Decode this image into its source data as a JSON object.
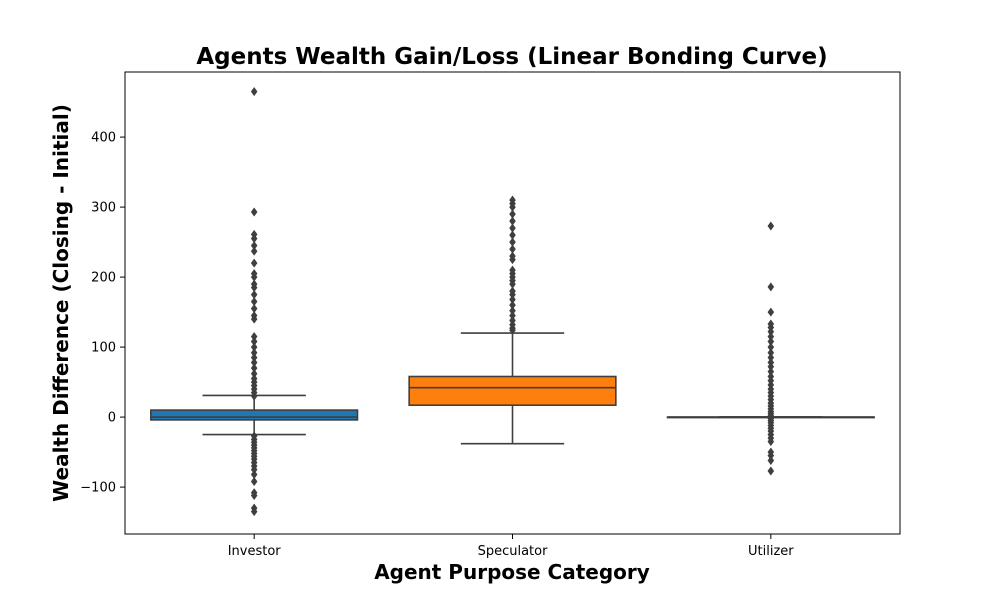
{
  "chart_data": {
    "type": "box",
    "title": "Agents Wealth Gain/Loss (Linear Bonding Curve)",
    "xlabel": "Agent Purpose Category",
    "ylabel": "Wealth Difference (Closing - Initial)",
    "categories": [
      "Investor",
      "Speculator",
      "Utilizer"
    ],
    "ylim": [
      -167,
      493
    ],
    "yticks": [
      -100,
      0,
      100,
      200,
      300,
      400
    ],
    "grid": false,
    "boxes": [
      {
        "category": "Investor",
        "color": "#1f77b4",
        "q1": -4,
        "median": 0,
        "q3": 10,
        "whisker_low": -25,
        "whisker_high": 31,
        "outliers": [
          465,
          293,
          261,
          255,
          245,
          237,
          220,
          205,
          200,
          190,
          185,
          175,
          165,
          155,
          145,
          140,
          115,
          108,
          100,
          92,
          85,
          78,
          70,
          62,
          55,
          50,
          45,
          40,
          35,
          30,
          -27,
          -32,
          -36,
          -40,
          -44,
          -48,
          -52,
          -56,
          -60,
          -65,
          -70,
          -75,
          -82,
          -92,
          -108,
          -112,
          -130,
          -135
        ]
      },
      {
        "category": "Speculator",
        "color": "#ff7f0e",
        "q1": 17,
        "median": 42,
        "q3": 58,
        "whisker_low": -38,
        "whisker_high": 120,
        "outliers": [
          310,
          305,
          300,
          290,
          280,
          270,
          260,
          250,
          240,
          230,
          225,
          210,
          205,
          200,
          195,
          190,
          180,
          175,
          168,
          160,
          152,
          145,
          138,
          132,
          127,
          124
        ]
      },
      {
        "category": "Utilizer",
        "color": "#2ca02c",
        "q1": 0,
        "median": 0,
        "q3": 0,
        "whisker_low": 0,
        "whisker_high": 0,
        "outliers": [
          273,
          186,
          150,
          133,
          128,
          122,
          115,
          108,
          100,
          92,
          85,
          78,
          72,
          65,
          58,
          52,
          46,
          40,
          35,
          30,
          25,
          20,
          16,
          12,
          8,
          5,
          2,
          -2,
          -5,
          -8,
          -12,
          -16,
          -20,
          -25,
          -30,
          -35,
          -50,
          -55,
          -62,
          -77
        ]
      }
    ]
  }
}
